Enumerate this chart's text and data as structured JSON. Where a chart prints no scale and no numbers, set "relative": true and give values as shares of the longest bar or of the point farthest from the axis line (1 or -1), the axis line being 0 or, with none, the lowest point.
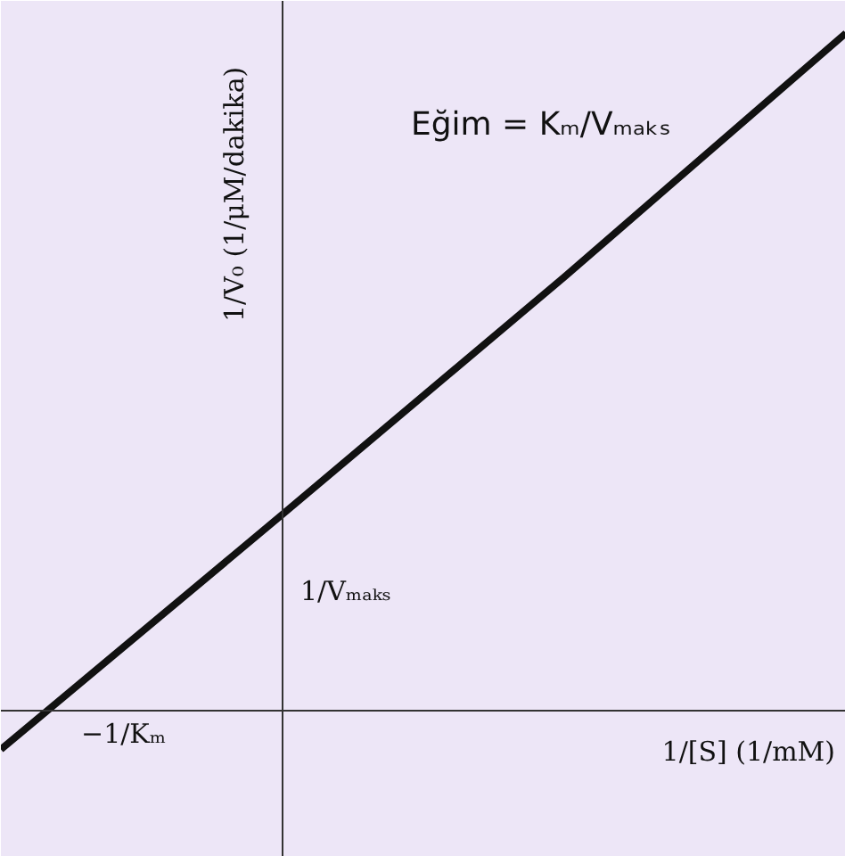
{
  "chart_data": {
    "type": "line",
    "relative": true,
    "categories": [
      null,
      null,
      null,
      null
    ],
    "series": [
      {
        "color": "#111111",
        "values": [
          -0.057,
          0.29,
          0.64,
          1
        ]
      }
    ],
    "xlabel": "1/[S] (1/mM)",
    "ylabel": "1/V₀ (1/μM/dakika)",
    "annotations": [
      "Eğim = Kₘ/Vₘₐₖₛ",
      "1/Vₘₐₖₛ",
      "−1/Kₘ"
    ]
  }
}
